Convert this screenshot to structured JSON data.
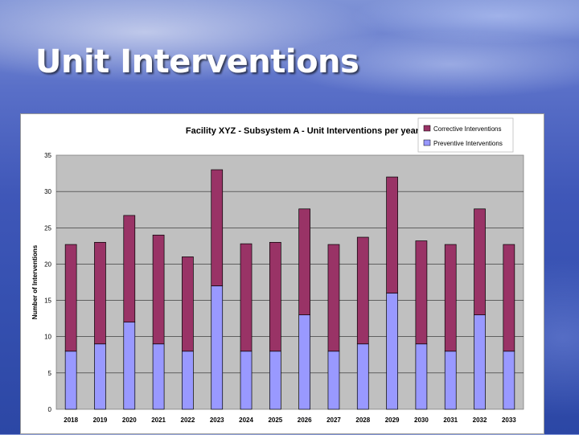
{
  "slide": {
    "title": "Unit Interventions"
  },
  "colors": {
    "corrective": "#993366",
    "preventive": "#9999ff",
    "plot_background": "#c0c0c0",
    "gridline": "#000000"
  },
  "chart_data": {
    "type": "bar",
    "stacked": true,
    "title": "Facility XYZ - Subsystem A - Unit Interventions per year",
    "xlabel": "",
    "ylabel": "Number of Interventions",
    "ylim": [
      0,
      35
    ],
    "yticks": [
      0,
      5,
      10,
      15,
      20,
      25,
      30,
      35
    ],
    "grid": true,
    "legend_position": "top-right",
    "categories": [
      "2018",
      "2019",
      "2020",
      "2021",
      "2022",
      "2023",
      "2024",
      "2025",
      "2026",
      "2027",
      "2028",
      "2029",
      "2030",
      "2031",
      "2032",
      "2033"
    ],
    "series": [
      {
        "name": "Preventive Interventions",
        "values": [
          8,
          9,
          12,
          9,
          8,
          17,
          8,
          8,
          13,
          8,
          9,
          16,
          9,
          8,
          13,
          8
        ]
      },
      {
        "name": "Corrective Interventions",
        "values": [
          14.7,
          14,
          14.7,
          15,
          13,
          16,
          14.8,
          15,
          14.6,
          14.7,
          14.7,
          16,
          14.2,
          14.7,
          14.6,
          14.7
        ]
      }
    ]
  }
}
